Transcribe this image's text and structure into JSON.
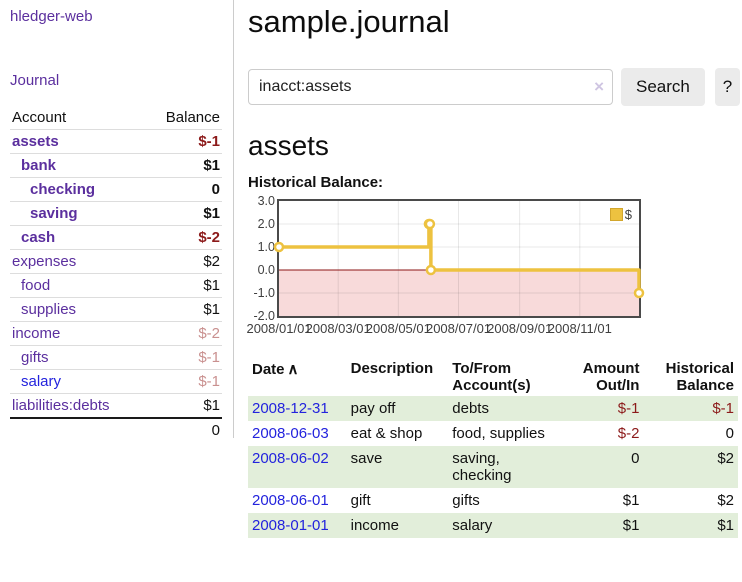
{
  "app": {
    "brand": "hledger-web",
    "nav_journal": "Journal"
  },
  "colors": {
    "accent_purple": "#5b2f9e",
    "link_blue": "#2323dd",
    "negative_strong": "#8c1a1a",
    "negative_soft": "#c9908f",
    "row_green": "#e2eeda",
    "series_gold": "#edc240"
  },
  "sidebar": {
    "header": {
      "account": "Account",
      "balance": "Balance"
    },
    "accounts": [
      {
        "name": "assets",
        "level": 0,
        "bold": true,
        "link": "purple",
        "balance": "$-1",
        "tone": "strong-neg"
      },
      {
        "name": "bank",
        "level": 1,
        "bold": true,
        "link": "purple",
        "balance": "$1",
        "tone": "pos"
      },
      {
        "name": "checking",
        "level": 2,
        "bold": true,
        "link": "purple",
        "balance": "0",
        "tone": "pos"
      },
      {
        "name": "saving",
        "level": 2,
        "bold": true,
        "link": "purple",
        "balance": "$1",
        "tone": "pos"
      },
      {
        "name": "cash",
        "level": 1,
        "bold": true,
        "link": "purple",
        "balance": "$-2",
        "tone": "strong-neg"
      },
      {
        "name": "expenses",
        "level": 0,
        "bold": false,
        "link": "purple",
        "balance": "$2",
        "tone": "pos"
      },
      {
        "name": "food",
        "level": 1,
        "bold": false,
        "link": "purple",
        "balance": "$1",
        "tone": "pos"
      },
      {
        "name": "supplies",
        "level": 1,
        "bold": false,
        "link": "purple",
        "balance": "$1",
        "tone": "pos"
      },
      {
        "name": "income",
        "level": 0,
        "bold": false,
        "link": "purple",
        "balance": "$-2",
        "tone": "soft-neg"
      },
      {
        "name": "gifts",
        "level": 1,
        "bold": false,
        "link": "purple",
        "balance": "$-1",
        "tone": "soft-neg"
      },
      {
        "name": "salary",
        "level": 1,
        "bold": false,
        "link": "blue",
        "balance": "$-1",
        "tone": "soft-neg"
      },
      {
        "name": "liabilities:debts",
        "level": 0,
        "bold": false,
        "link": "purple",
        "balance": "$1",
        "tone": "pos"
      }
    ],
    "total": "0"
  },
  "main": {
    "title": "sample.journal",
    "search": {
      "value": "inacct:assets",
      "clear_icon": "×",
      "button": "Search",
      "help": "?"
    },
    "section_title": "assets",
    "chart_label": "Historical Balance:"
  },
  "chart_data": {
    "type": "line",
    "steps": true,
    "title": "Historical Balance:",
    "legend_label": "$",
    "legend_position": "top-right",
    "grid": true,
    "xlim": [
      "2008-01-01",
      "2008-12-31"
    ],
    "ylim": [
      -2,
      3
    ],
    "y_ticks": [
      {
        "label": "3.0",
        "value": 3
      },
      {
        "label": "2.0",
        "value": 2
      },
      {
        "label": "1.0",
        "value": 1
      },
      {
        "label": "0.0",
        "value": 0
      },
      {
        "label": "-1.0",
        "value": -1
      },
      {
        "label": "-2.0",
        "value": -2
      }
    ],
    "x_ticks": [
      {
        "label": "2008/01/01",
        "date": "2008-01-01"
      },
      {
        "label": "2008/03/01",
        "date": "2008-03-01"
      },
      {
        "label": "2008/05/01",
        "date": "2008-05-01"
      },
      {
        "label": "2008/07/01",
        "date": "2008-07-01"
      },
      {
        "label": "2008/09/01",
        "date": "2008-09-01"
      },
      {
        "label": "2008/11/01",
        "date": "2008-11-01"
      }
    ],
    "x_grid": [
      "2008-03-01",
      "2008-05-01",
      "2008-07-01",
      "2008-09-01",
      "2008-11-01"
    ],
    "negative_region_color": "#f8dada",
    "zero_line_color": "#8b1414",
    "series": [
      {
        "name": "$",
        "color": "#edc240",
        "points": [
          {
            "date": "2008-01-01",
            "value": 1
          },
          {
            "date": "2008-06-01",
            "value": 2
          },
          {
            "date": "2008-06-02",
            "value": 2
          },
          {
            "date": "2008-06-03",
            "value": 0
          },
          {
            "date": "2008-12-31",
            "value": -1
          }
        ]
      }
    ]
  },
  "register": {
    "headers": {
      "date": "Date",
      "sort_icon": "∧",
      "description": "Description",
      "tofrom": "To/From Account(s)",
      "amount": "Amount Out/In",
      "balance": "Historical Balance"
    },
    "rows": [
      {
        "date": "2008-12-31",
        "description": "pay off",
        "accounts": "debts",
        "amount": "$-1",
        "amount_tone": "strong-neg",
        "balance": "$-1",
        "balance_tone": "strong-neg",
        "shade": true
      },
      {
        "date": "2008-06-03",
        "description": "eat & shop",
        "accounts": "food, supplies",
        "amount": "$-2",
        "amount_tone": "strong-neg",
        "balance": "0",
        "balance_tone": "pos",
        "shade": false
      },
      {
        "date": "2008-06-02",
        "description": "save",
        "accounts": "saving, checking",
        "amount": "0",
        "amount_tone": "pos",
        "balance": "$2",
        "balance_tone": "pos",
        "shade": true
      },
      {
        "date": "2008-06-01",
        "description": "gift",
        "accounts": "gifts",
        "amount": "$1",
        "amount_tone": "pos",
        "balance": "$2",
        "balance_tone": "pos",
        "shade": false
      },
      {
        "date": "2008-01-01",
        "description": "income",
        "accounts": "salary",
        "amount": "$1",
        "amount_tone": "pos",
        "balance": "$1",
        "balance_tone": "pos",
        "shade": true
      }
    ]
  }
}
